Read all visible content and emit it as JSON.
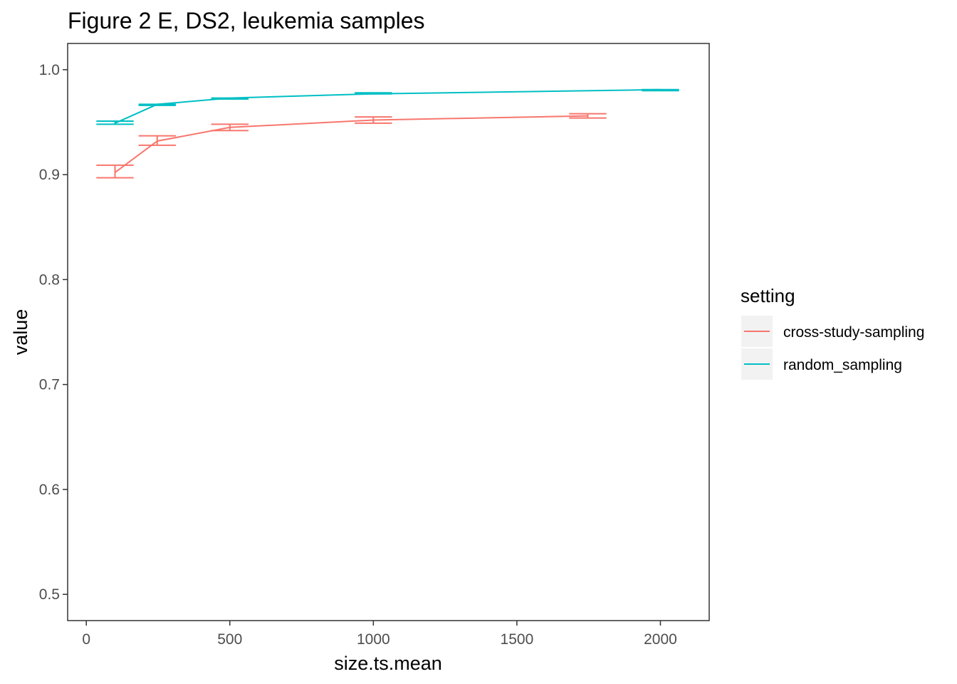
{
  "chart_data": {
    "type": "line",
    "title": "Figure 2 E, DS2, leukemia samples",
    "xlabel": "size.ts.mean",
    "ylabel": "value",
    "xlim": [
      -65,
      2170
    ],
    "ylim": [
      0.475,
      1.025
    ],
    "x_ticks": [
      0,
      500,
      1000,
      1500,
      2000
    ],
    "x_tick_labels": [
      "0",
      "500",
      "1000",
      "1500",
      "2000"
    ],
    "y_ticks": [
      0.5,
      0.6,
      0.7,
      0.8,
      0.9,
      1.0
    ],
    "y_tick_labels": [
      "0.5",
      "0.6",
      "0.7",
      "0.8",
      "0.9",
      "1.0"
    ],
    "grid": false,
    "legend": {
      "title": "setting",
      "position": "right"
    },
    "series": [
      {
        "name": "cross-study-sampling",
        "color": "#F8766D",
        "points": [
          {
            "x": 100,
            "y": 0.902,
            "ymin": 0.897,
            "ymax": 0.909,
            "half_width": 65
          },
          {
            "x": 247,
            "y": 0.932,
            "ymin": 0.928,
            "ymax": 0.937,
            "half_width": 65
          },
          {
            "x": 500,
            "y": 0.945,
            "ymin": 0.942,
            "ymax": 0.948,
            "half_width": 65
          },
          {
            "x": 1000,
            "y": 0.952,
            "ymin": 0.949,
            "ymax": 0.955,
            "half_width": 65
          },
          {
            "x": 1747,
            "y": 0.956,
            "ymin": 0.954,
            "ymax": 0.958,
            "half_width": 65
          }
        ]
      },
      {
        "name": "random_sampling",
        "color": "#00BFC4",
        "points": [
          {
            "x": 100,
            "y": 0.949,
            "ymin": 0.948,
            "ymax": 0.951,
            "half_width": 65
          },
          {
            "x": 247,
            "y": 0.967,
            "ymin": 0.966,
            "ymax": 0.967,
            "half_width": 65
          },
          {
            "x": 500,
            "y": 0.973,
            "ymin": 0.972,
            "ymax": 0.973,
            "half_width": 65
          },
          {
            "x": 1000,
            "y": 0.977,
            "ymin": 0.977,
            "ymax": 0.978,
            "half_width": 65
          },
          {
            "x": 2000,
            "y": 0.981,
            "ymin": 0.98,
            "ymax": 0.981,
            "half_width": 65
          }
        ]
      }
    ]
  }
}
